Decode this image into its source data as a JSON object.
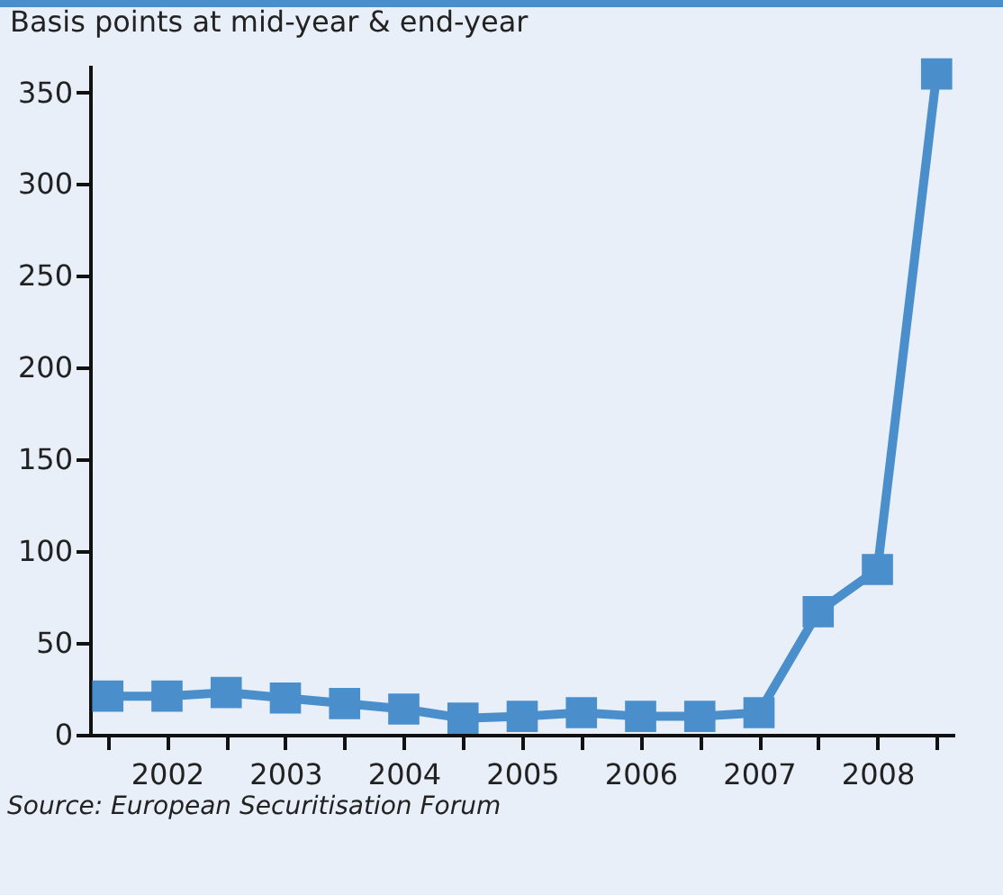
{
  "chart_data": {
    "type": "line",
    "ylabel": "Basis points at mid-year & end-year",
    "categories": [
      null,
      "2002",
      null,
      "2003",
      null,
      "2004",
      null,
      "2005",
      null,
      "2006",
      null,
      "2007",
      null,
      "2008",
      null
    ],
    "series": [
      {
        "color": "#4a8fcc",
        "values": [
          21,
          21,
          23,
          20,
          17,
          14,
          9,
          10,
          12,
          10,
          10,
          12,
          67,
          90,
          360
        ]
      }
    ],
    "ylim": [
      0,
      365
    ],
    "yticks": [
      0,
      50,
      100,
      150,
      200,
      250,
      300,
      350
    ],
    "grid": false,
    "marker": "square",
    "line_style": "solid",
    "annotations": [
      "Source: European Securitisation Forum"
    ]
  }
}
